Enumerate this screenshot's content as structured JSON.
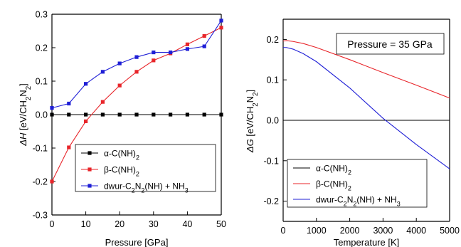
{
  "chart_data": [
    {
      "type": "line",
      "xlabel": "Pressure [GPa]",
      "ylabel_parts": [
        [
          "ΔH",
          "i"
        ],
        [
          " [eV/CH",
          ""
        ],
        [
          "2",
          "sub"
        ],
        [
          "N",
          ""
        ],
        [
          "2",
          "sub"
        ],
        [
          "]",
          ""
        ]
      ],
      "xlim": [
        0,
        50
      ],
      "ylim": [
        -0.3,
        0.3
      ],
      "xticks": [
        "0",
        "10",
        "20",
        "30",
        "40",
        "50"
      ],
      "yticks": [
        "-0.3",
        "-0.2",
        "-0.1",
        "0.0",
        "0.1",
        "0.2",
        "0.3"
      ],
      "legend_position": "bottom-right",
      "series": [
        {
          "legend_parts": [
            [
              "α-C(NH)",
              ""
            ],
            [
              "2",
              "sub"
            ]
          ],
          "color": "#000000",
          "marker": "square",
          "x": [
            0,
            5,
            10,
            15,
            20,
            25,
            30,
            35,
            40,
            45,
            50
          ],
          "y": [
            0,
            0,
            0,
            0,
            0,
            0,
            0,
            0,
            0,
            0,
            0
          ]
        },
        {
          "legend_parts": [
            [
              "β-C(NH)",
              ""
            ],
            [
              "2",
              "sub"
            ]
          ],
          "color": "#e8252a",
          "marker": "square",
          "x": [
            0,
            5,
            10,
            15,
            20,
            25,
            30,
            35,
            40,
            45,
            50
          ],
          "y": [
            -0.2,
            -0.098,
            -0.02,
            0.038,
            0.087,
            0.128,
            0.162,
            0.183,
            0.21,
            0.235,
            0.26
          ]
        },
        {
          "legend_parts": [
            [
              "dwur-C",
              ""
            ],
            [
              "2",
              "sub"
            ],
            [
              "N",
              ""
            ],
            [
              "2",
              "sub"
            ],
            [
              "(NH) + NH",
              ""
            ],
            [
              "3",
              "sub"
            ]
          ],
          "color": "#1f1fd6",
          "marker": "square",
          "x": [
            0,
            5,
            10,
            15,
            20,
            25,
            30,
            35,
            40,
            45,
            50
          ],
          "y": [
            0.02,
            0.033,
            0.092,
            0.128,
            0.153,
            0.172,
            0.186,
            0.186,
            0.196,
            0.204,
            0.281
          ]
        }
      ]
    },
    {
      "type": "line",
      "xlabel": "Temperature [K]",
      "ylabel_parts": [
        [
          "ΔG",
          "i"
        ],
        [
          " [eV/CH",
          ""
        ],
        [
          "2",
          "sub"
        ],
        [
          "N",
          ""
        ],
        [
          "2",
          "sub"
        ],
        [
          "]",
          ""
        ]
      ],
      "annotation": "Pressure = 35 GPa",
      "xlim": [
        0,
        5000
      ],
      "ylim": [
        -0.25,
        0.25
      ],
      "xticks": [
        "0",
        "1000",
        "2000",
        "3000",
        "4000",
        "5000"
      ],
      "yticks": [
        "-0.2",
        "-0.1",
        "0.0",
        "0.1",
        "0.2"
      ],
      "legend_position": "bottom-left",
      "series": [
        {
          "legend_parts": [
            [
              "α-C(NH)",
              ""
            ],
            [
              "2",
              "sub"
            ]
          ],
          "color": "#000000",
          "x": [
            0,
            5000
          ],
          "y": [
            0,
            0
          ]
        },
        {
          "legend_parts": [
            [
              "β-C(NH)",
              ""
            ],
            [
              "2",
              "sub"
            ]
          ],
          "color": "#e8252a",
          "x": [
            0,
            100,
            300,
            600,
            1000,
            2000,
            3000,
            4000,
            5000
          ],
          "y": [
            0.196,
            0.197,
            0.195,
            0.19,
            0.18,
            0.15,
            0.118,
            0.087,
            0.055
          ]
        },
        {
          "legend_parts": [
            [
              "dwur-C",
              ""
            ],
            [
              "2",
              "sub"
            ],
            [
              "N",
              ""
            ],
            [
              "2",
              "sub"
            ],
            [
              "(NH) + NH",
              ""
            ],
            [
              "3",
              "sub"
            ]
          ],
          "color": "#1f1fd6",
          "x": [
            0,
            100,
            300,
            600,
            1000,
            2000,
            3000,
            4000,
            5000
          ],
          "y": [
            0.18,
            0.18,
            0.176,
            0.165,
            0.145,
            0.08,
            0.005,
            -0.06,
            -0.12
          ]
        }
      ]
    }
  ]
}
